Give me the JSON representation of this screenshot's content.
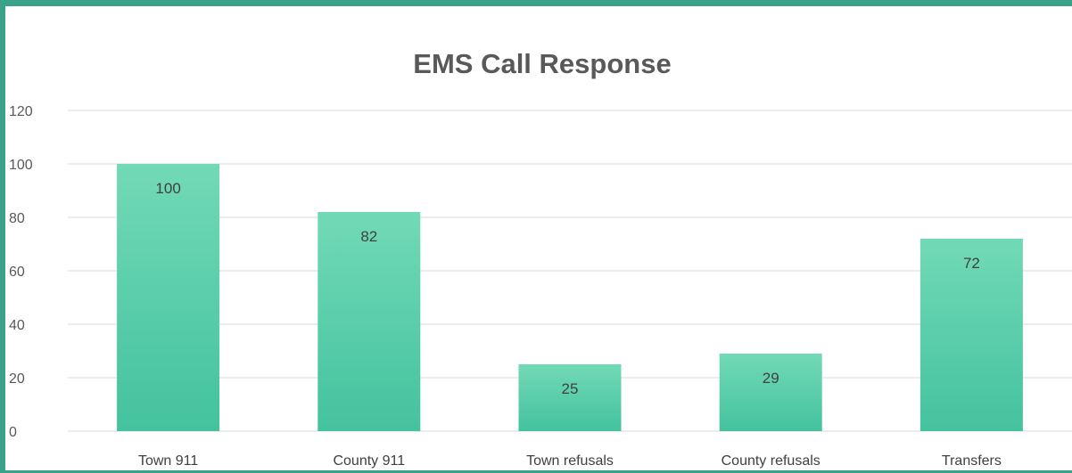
{
  "chart_data": {
    "type": "bar",
    "title": "EMS Call Response",
    "categories": [
      "Town 911",
      "County 911",
      "Town refusals",
      "County refusals",
      "Transfers"
    ],
    "values": [
      100,
      82,
      25,
      29,
      72
    ],
    "data_labels": [
      "100",
      "82",
      "25",
      "29",
      "72"
    ],
    "yticks": [
      "0",
      "20",
      "40",
      "60",
      "80",
      "100",
      "120"
    ],
    "ylim": [
      0,
      120
    ],
    "grid": true,
    "legend": "none",
    "colors": {
      "bar_top": "#72d9b6",
      "bar_bottom": "#44c29e",
      "frame": "#3aa288",
      "grid": "#d9d9d9",
      "title": "#595959",
      "text": "#404040"
    }
  }
}
